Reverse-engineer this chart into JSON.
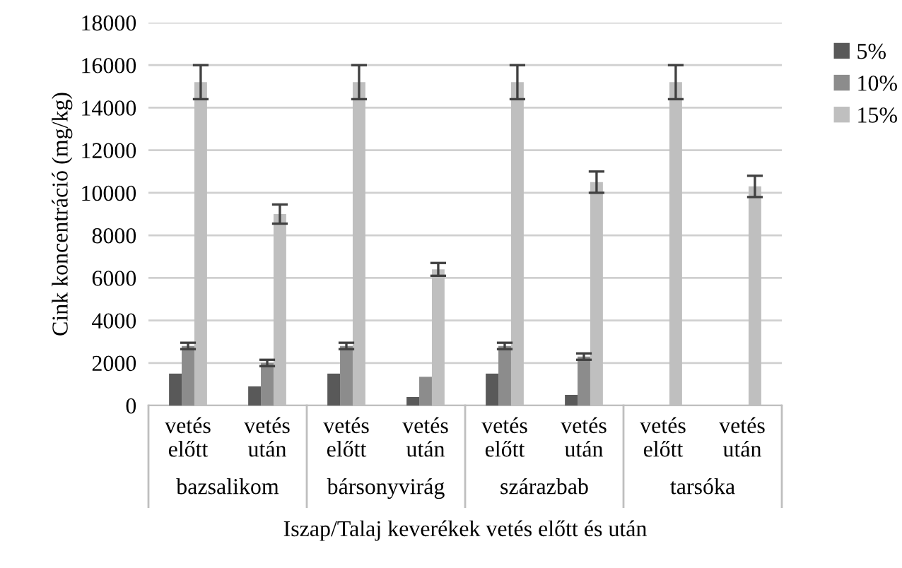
{
  "chart_data": {
    "type": "bar",
    "xlabel": "Iszap/Talaj keverékek vetés előtt és után",
    "ylabel": "Cink koncentráció (mg/kg)",
    "categories": [
      "vetés\nelőtt",
      "vetés\nután",
      "vetés\nelőtt",
      "vetés\nután",
      "vetés\nelőtt",
      "vetés\nután",
      "vetés\nelőtt",
      "vetés\nután"
    ],
    "annotations": [
      "bazsalikom",
      "bársonyvirág",
      "szárazbab",
      "tarsóka"
    ],
    "series": [
      {
        "name": "5%",
        "color": "#595959",
        "values": [
          1500,
          900,
          1500,
          400,
          1500,
          500,
          null,
          null
        ]
      },
      {
        "name": "10%",
        "color": "#8c8c8c",
        "values": [
          2800,
          2000,
          2800,
          1350,
          2800,
          2300,
          null,
          null
        ],
        "errors": [
          150,
          150,
          150,
          null,
          150,
          150,
          null,
          null
        ]
      },
      {
        "name": "15%",
        "color": "#bfbfbf",
        "values": [
          15200,
          9000,
          15200,
          6400,
          15200,
          10500,
          15200,
          10300
        ],
        "errors": [
          800,
          450,
          800,
          300,
          800,
          500,
          800,
          500
        ]
      }
    ],
    "ylim": [
      0,
      18000
    ],
    "yticks": [
      0,
      2000,
      4000,
      6000,
      8000,
      10000,
      12000,
      14000,
      16000,
      18000
    ],
    "grid": "y",
    "legend": "right"
  }
}
